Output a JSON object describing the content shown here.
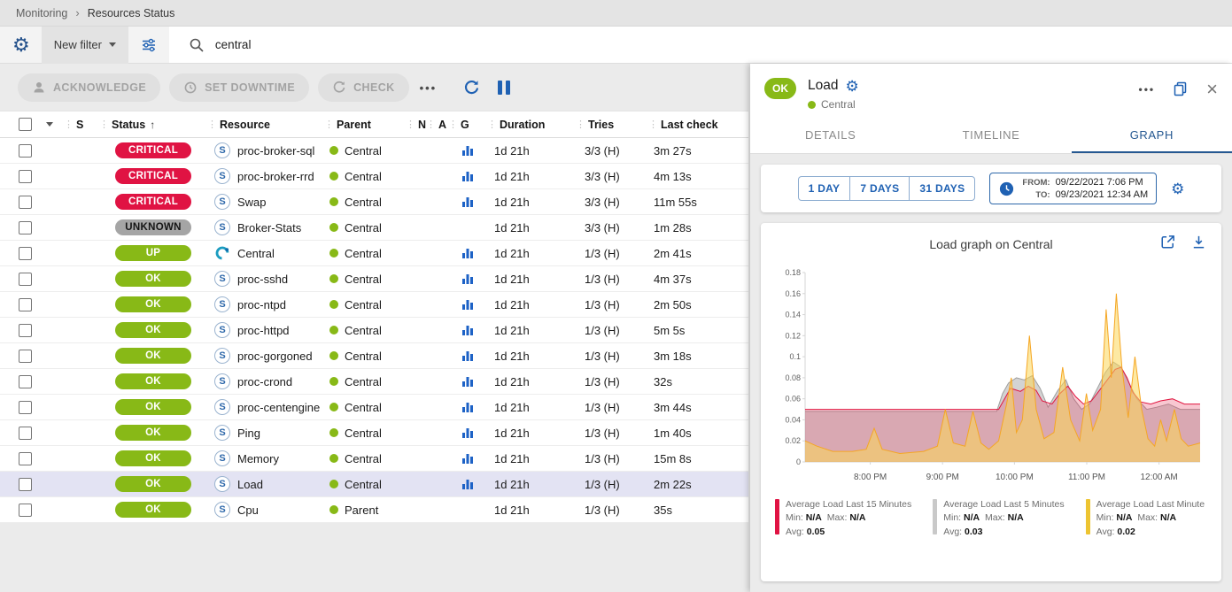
{
  "icons": {
    "gear": "⚙",
    "more": "•••",
    "close": "×",
    "breadcrumb_sep": "›",
    "sort_asc": "↑"
  },
  "breadcrumb": {
    "items": [
      "Monitoring",
      "Resources Status"
    ]
  },
  "filter_bar": {
    "new_filter_label": "New filter",
    "search_value": "central"
  },
  "toolbar": {
    "acknowledge": "ACKNOWLEDGE",
    "set_downtime": "SET DOWNTIME",
    "check": "CHECK",
    "more": "•••"
  },
  "table": {
    "headers": {
      "s": "S",
      "status": "Status",
      "resource": "Resource",
      "parent": "Parent",
      "n": "N",
      "a": "A",
      "g": "G",
      "duration": "Duration",
      "tries": "Tries",
      "last_check": "Last check"
    },
    "rows": [
      {
        "status": "CRITICAL",
        "icon": "S",
        "resource": "proc-broker-sql",
        "parent": "Central",
        "graph": true,
        "duration": "1d 21h",
        "tries": "3/3 (H)",
        "last_check": "3m 27s",
        "selected": false
      },
      {
        "status": "CRITICAL",
        "icon": "S",
        "resource": "proc-broker-rrd",
        "parent": "Central",
        "graph": true,
        "duration": "1d 21h",
        "tries": "3/3 (H)",
        "last_check": "4m 13s",
        "selected": false
      },
      {
        "status": "CRITICAL",
        "icon": "S",
        "resource": "Swap",
        "parent": "Central",
        "graph": true,
        "duration": "1d 21h",
        "tries": "3/3 (H)",
        "last_check": "11m 55s",
        "selected": false
      },
      {
        "status": "UNKNOWN",
        "icon": "S",
        "resource": "Broker-Stats",
        "parent": "Central",
        "graph": false,
        "duration": "1d 21h",
        "tries": "3/3 (H)",
        "last_check": "1m 28s",
        "selected": false
      },
      {
        "status": "UP",
        "icon": "C",
        "resource": "Central",
        "parent": "Central",
        "graph": true,
        "duration": "1d 21h",
        "tries": "1/3 (H)",
        "last_check": "2m 41s",
        "selected": false
      },
      {
        "status": "OK",
        "icon": "S",
        "resource": "proc-sshd",
        "parent": "Central",
        "graph": true,
        "duration": "1d 21h",
        "tries": "1/3 (H)",
        "last_check": "4m 37s",
        "selected": false
      },
      {
        "status": "OK",
        "icon": "S",
        "resource": "proc-ntpd",
        "parent": "Central",
        "graph": true,
        "duration": "1d 21h",
        "tries": "1/3 (H)",
        "last_check": "2m 50s",
        "selected": false
      },
      {
        "status": "OK",
        "icon": "S",
        "resource": "proc-httpd",
        "parent": "Central",
        "graph": true,
        "duration": "1d 21h",
        "tries": "1/3 (H)",
        "last_check": "5m 5s",
        "selected": false
      },
      {
        "status": "OK",
        "icon": "S",
        "resource": "proc-gorgoned",
        "parent": "Central",
        "graph": true,
        "duration": "1d 21h",
        "tries": "1/3 (H)",
        "last_check": "3m 18s",
        "selected": false
      },
      {
        "status": "OK",
        "icon": "S",
        "resource": "proc-crond",
        "parent": "Central",
        "graph": true,
        "duration": "1d 21h",
        "tries": "1/3 (H)",
        "last_check": "32s",
        "selected": false
      },
      {
        "status": "OK",
        "icon": "S",
        "resource": "proc-centengine",
        "parent": "Central",
        "graph": true,
        "duration": "1d 21h",
        "tries": "1/3 (H)",
        "last_check": "3m 44s",
        "selected": false
      },
      {
        "status": "OK",
        "icon": "S",
        "resource": "Ping",
        "parent": "Central",
        "graph": true,
        "duration": "1d 21h",
        "tries": "1/3 (H)",
        "last_check": "1m 40s",
        "selected": false
      },
      {
        "status": "OK",
        "icon": "S",
        "resource": "Memory",
        "parent": "Central",
        "graph": true,
        "duration": "1d 21h",
        "tries": "1/3 (H)",
        "last_check": "15m 8s",
        "selected": false
      },
      {
        "status": "OK",
        "icon": "S",
        "resource": "Load",
        "parent": "Central",
        "graph": true,
        "duration": "1d 21h",
        "tries": "1/3 (H)",
        "last_check": "2m 22s",
        "selected": true
      },
      {
        "status": "OK",
        "icon": "S",
        "resource": "Cpu",
        "parent": "Parent",
        "graph": false,
        "duration": "1d 21h",
        "tries": "1/3 (H)",
        "last_check": "35s",
        "selected": false
      }
    ]
  },
  "colors": {
    "status": {
      "CRITICAL": {
        "bg": "#e01343",
        "fg": "#ffffff"
      },
      "UNKNOWN": {
        "bg": "#a5a5a5",
        "fg": "#151515"
      },
      "UP": {
        "bg": "#88b917",
        "fg": "#ffffff"
      },
      "OK": {
        "bg": "#88b917",
        "fg": "#ffffff"
      }
    },
    "accent_blue": "#1f61b3",
    "tab_active": "#255891",
    "selected_row": "#e3e3f3"
  },
  "panel": {
    "status": "OK",
    "title": "Load",
    "parent": "Central",
    "tabs": [
      "DETAILS",
      "TIMELINE",
      "GRAPH"
    ],
    "active_tab": "GRAPH",
    "time_buttons": [
      "1 DAY",
      "7 DAYS",
      "31 DAYS"
    ],
    "from_label": "FROM:",
    "from_value": "09/22/2021 7:06 PM",
    "to_label": "TO:",
    "to_value": "09/23/2021 12:34 AM",
    "graph_title": "Load graph on Central",
    "legend": [
      {
        "name": "Average Load Last 15 Minutes",
        "color": "#e01343",
        "min": "N/A",
        "max": "N/A",
        "avg": "0.05"
      },
      {
        "name": "Average Load Last 5 Minutes",
        "color": "#c9c9c9",
        "min": "N/A",
        "max": "N/A",
        "avg": "0.03"
      },
      {
        "name": "Average Load Last Minute",
        "color": "#edc431",
        "min": "N/A",
        "max": "N/A",
        "avg": "0.02"
      }
    ]
  },
  "chart_data": {
    "type": "area",
    "title": "Load graph on Central",
    "ylim": [
      0,
      0.18
    ],
    "y_ticks": [
      "0",
      "0.02",
      "0.04",
      "0.06",
      "0.08",
      "0.1",
      "0.12",
      "0.14",
      "0.16",
      "0.18"
    ],
    "x_ticks": [
      "8:00 PM",
      "9:00 PM",
      "10:00 PM",
      "11:00 PM",
      "12:00 AM"
    ],
    "x_tick_pos": [
      0.165,
      0.348,
      0.53,
      0.713,
      0.896
    ],
    "x_range": [
      "7:06 PM",
      "12:34 AM"
    ],
    "series": [
      {
        "name": "Average Load Last 5 Minutes",
        "line": "#9e9e9e",
        "fill": "rgba(175,175,175,0.55)",
        "points": [
          [
            0,
            0.048
          ],
          [
            0.485,
            0.048
          ],
          [
            0.5,
            0.065
          ],
          [
            0.515,
            0.075
          ],
          [
            0.535,
            0.08
          ],
          [
            0.555,
            0.078
          ],
          [
            0.575,
            0.082
          ],
          [
            0.595,
            0.07
          ],
          [
            0.615,
            0.052
          ],
          [
            0.64,
            0.068
          ],
          [
            0.66,
            0.078
          ],
          [
            0.68,
            0.06
          ],
          [
            0.7,
            0.05
          ],
          [
            0.72,
            0.055
          ],
          [
            0.74,
            0.07
          ],
          [
            0.76,
            0.085
          ],
          [
            0.78,
            0.095
          ],
          [
            0.8,
            0.09
          ],
          [
            0.82,
            0.075
          ],
          [
            0.84,
            0.06
          ],
          [
            0.865,
            0.05
          ],
          [
            0.89,
            0.052
          ],
          [
            0.92,
            0.055
          ],
          [
            0.95,
            0.05
          ],
          [
            1,
            0.05
          ]
        ]
      },
      {
        "name": "Average Load Last 15 Minutes",
        "line": "#e0153f",
        "fill": "rgba(231,70,102,0.30)",
        "points": [
          [
            0,
            0.05
          ],
          [
            0.49,
            0.05
          ],
          [
            0.505,
            0.06
          ],
          [
            0.52,
            0.07
          ],
          [
            0.545,
            0.067
          ],
          [
            0.565,
            0.072
          ],
          [
            0.585,
            0.068
          ],
          [
            0.6,
            0.058
          ],
          [
            0.625,
            0.055
          ],
          [
            0.645,
            0.065
          ],
          [
            0.665,
            0.072
          ],
          [
            0.685,
            0.062
          ],
          [
            0.705,
            0.055
          ],
          [
            0.725,
            0.058
          ],
          [
            0.745,
            0.068
          ],
          [
            0.765,
            0.078
          ],
          [
            0.785,
            0.088
          ],
          [
            0.8,
            0.09
          ],
          [
            0.815,
            0.08
          ],
          [
            0.83,
            0.066
          ],
          [
            0.85,
            0.057
          ],
          [
            0.875,
            0.055
          ],
          [
            0.9,
            0.058
          ],
          [
            0.93,
            0.06
          ],
          [
            0.96,
            0.055
          ],
          [
            1,
            0.055
          ]
        ]
      },
      {
        "name": "Average Load Last Minute",
        "line": "#f5a623",
        "fill": "rgba(252,215,87,0.55)",
        "points": [
          [
            0,
            0.02
          ],
          [
            0.03,
            0.015
          ],
          [
            0.07,
            0.01
          ],
          [
            0.12,
            0.01
          ],
          [
            0.155,
            0.012
          ],
          [
            0.175,
            0.032
          ],
          [
            0.195,
            0.012
          ],
          [
            0.24,
            0.008
          ],
          [
            0.3,
            0.01
          ],
          [
            0.335,
            0.015
          ],
          [
            0.355,
            0.05
          ],
          [
            0.375,
            0.018
          ],
          [
            0.405,
            0.015
          ],
          [
            0.425,
            0.048
          ],
          [
            0.445,
            0.018
          ],
          [
            0.465,
            0.012
          ],
          [
            0.49,
            0.02
          ],
          [
            0.51,
            0.055
          ],
          [
            0.522,
            0.08
          ],
          [
            0.535,
            0.028
          ],
          [
            0.55,
            0.04
          ],
          [
            0.568,
            0.12
          ],
          [
            0.585,
            0.05
          ],
          [
            0.605,
            0.022
          ],
          [
            0.63,
            0.028
          ],
          [
            0.652,
            0.09
          ],
          [
            0.672,
            0.04
          ],
          [
            0.695,
            0.02
          ],
          [
            0.712,
            0.065
          ],
          [
            0.728,
            0.03
          ],
          [
            0.748,
            0.05
          ],
          [
            0.762,
            0.145
          ],
          [
            0.775,
            0.08
          ],
          [
            0.788,
            0.16
          ],
          [
            0.802,
            0.09
          ],
          [
            0.818,
            0.042
          ],
          [
            0.835,
            0.1
          ],
          [
            0.852,
            0.05
          ],
          [
            0.868,
            0.022
          ],
          [
            0.885,
            0.015
          ],
          [
            0.9,
            0.04
          ],
          [
            0.915,
            0.02
          ],
          [
            0.935,
            0.05
          ],
          [
            0.952,
            0.022
          ],
          [
            0.97,
            0.015
          ],
          [
            1,
            0.018
          ]
        ]
      }
    ]
  }
}
